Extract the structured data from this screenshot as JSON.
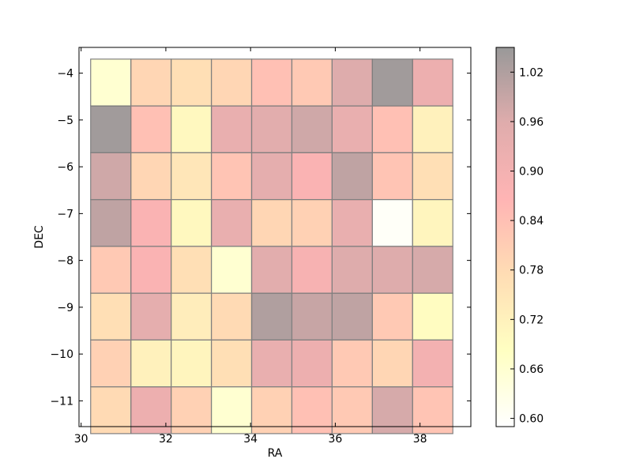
{
  "chart_data": {
    "type": "heatmap",
    "title": "",
    "xlabel": "RA",
    "ylabel": "DEC",
    "xlim": [
      29.95,
      39.2
    ],
    "ylim": [
      -11.55,
      -3.45
    ],
    "xticks": [
      30,
      32,
      34,
      36,
      38
    ],
    "xtick_labels": [
      "30",
      "32",
      "34",
      "36",
      "38"
    ],
    "yticks": [
      -4,
      -5,
      -6,
      -7,
      -8,
      -9,
      -10,
      -11
    ],
    "ytick_labels": [
      "−4",
      "−5",
      "−6",
      "−7",
      "−8",
      "−9",
      "−10",
      "−11"
    ],
    "ra_centers": [
      30.7,
      31.65,
      32.6,
      33.55,
      34.5,
      35.45,
      36.4,
      37.35,
      38.3
    ],
    "dec_centers": [
      -4.2,
      -5.2,
      -6.2,
      -7.2,
      -8.2,
      -9.2,
      -10.2,
      -11.2
    ],
    "cell_width": 0.95,
    "cell_height": 1.0,
    "values": [
      [
        0.66,
        0.79,
        0.77,
        0.79,
        0.84,
        0.82,
        0.96,
        1.04,
        0.92
      ],
      [
        1.04,
        0.84,
        0.7,
        0.93,
        0.95,
        0.98,
        0.93,
        0.84,
        0.72
      ],
      [
        0.98,
        0.79,
        0.75,
        0.83,
        0.94,
        0.88,
        1.0,
        0.83,
        0.77
      ],
      [
        1.0,
        0.88,
        0.7,
        0.93,
        0.79,
        0.8,
        0.93,
        0.6,
        0.71
      ],
      [
        0.82,
        0.88,
        0.77,
        0.66,
        0.95,
        0.89,
        0.96,
        0.96,
        0.97
      ],
      [
        0.77,
        0.94,
        0.73,
        0.78,
        1.02,
        0.99,
        1.0,
        0.82,
        0.69
      ],
      [
        0.8,
        0.72,
        0.71,
        0.77,
        0.93,
        0.92,
        0.82,
        0.79,
        0.9
      ],
      [
        0.78,
        0.92,
        0.8,
        0.66,
        0.8,
        0.84,
        0.82,
        0.97,
        0.83
      ]
    ],
    "colorbar": {
      "min": 0.59,
      "max": 1.05,
      "ticks": [
        0.6,
        0.66,
        0.72,
        0.78,
        0.84,
        0.9,
        0.96,
        1.02
      ],
      "tick_labels": [
        "0.60",
        "0.66",
        "0.72",
        "0.78",
        "0.84",
        "0.90",
        "0.96",
        "1.02"
      ]
    },
    "colormap": [
      "#ffffff",
      "#ffff66",
      "#ffaa44",
      "#ff4444",
      "#b03030",
      "#000000"
    ],
    "cell_alpha": 0.4,
    "cell_edge_color": "#808080",
    "grid": false
  }
}
